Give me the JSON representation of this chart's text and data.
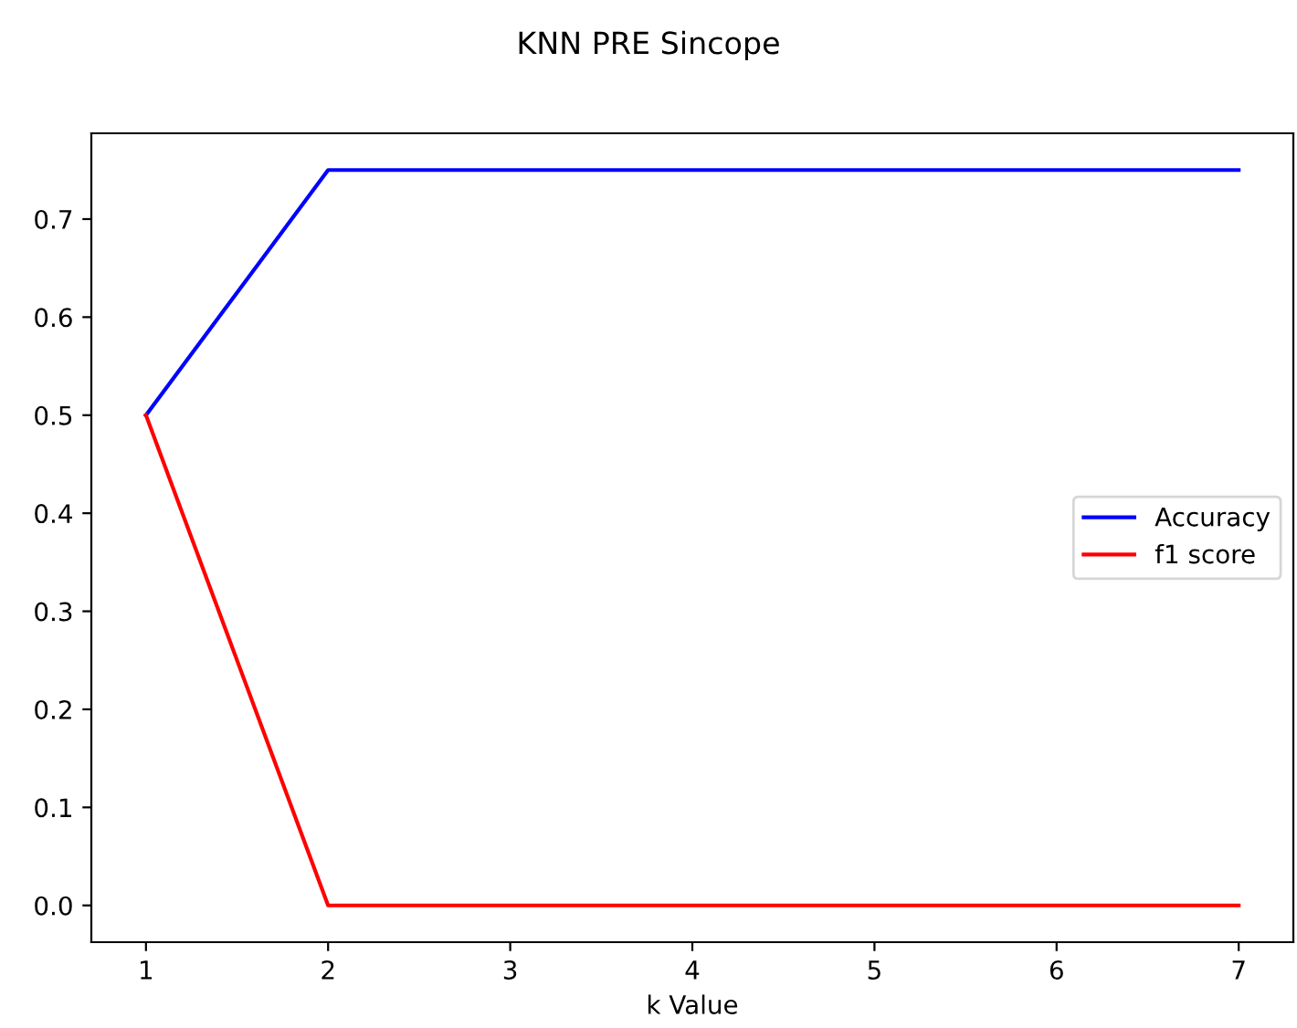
{
  "chart_data": {
    "type": "line",
    "title": "KNN PRE Sincope",
    "xlabel": "k Value",
    "x": [
      1,
      2,
      3,
      4,
      5,
      6,
      7
    ],
    "series": [
      {
        "name": "Accuracy",
        "color": "#0000ff",
        "values": [
          0.5,
          0.75,
          0.75,
          0.75,
          0.75,
          0.75,
          0.75
        ]
      },
      {
        "name": "f1 score",
        "color": "#ff0000",
        "values": [
          0.5,
          0.0,
          0.0,
          0.0,
          0.0,
          0.0,
          0.0
        ]
      }
    ],
    "xlim": [
      0.7,
      7.3
    ],
    "ylim": [
      -0.0375,
      0.7875
    ],
    "xticks": [
      1,
      2,
      3,
      4,
      5,
      6,
      7
    ],
    "yticks": [
      {
        "value": 0,
        "label": "0.0"
      },
      0.1,
      0.2,
      0.3,
      0.4,
      0.5,
      0.6,
      0.7
    ],
    "grid": false,
    "legend": "right",
    "marker": "none",
    "line_style": "solid"
  }
}
